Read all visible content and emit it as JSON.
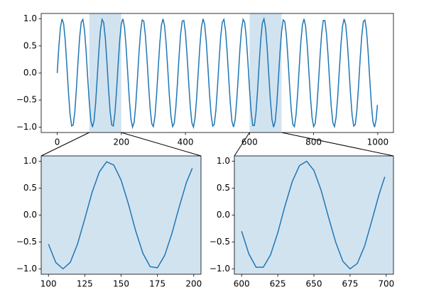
{
  "chart_data": [
    {
      "type": "line",
      "color": "#1f77b4",
      "span_color": "#d2e3f0",
      "xlim": [
        -50,
        1049
      ],
      "ylim": [
        -1.1,
        1.1
      ],
      "xticks": [
        0,
        200,
        400,
        600,
        800,
        1000
      ],
      "yticks": [
        {
          "value": -1,
          "label": "−1.0"
        },
        {
          "value": -0.5,
          "label": "−0.5"
        },
        {
          "value": 0,
          "label": "0.0"
        },
        0.5,
        {
          "value": 1,
          "label": "1.0"
        }
      ],
      "highlight_spans": [
        [
          100,
          200
        ],
        [
          600,
          700
        ]
      ],
      "x": [
        0,
        5,
        10,
        15,
        20,
        25,
        30,
        35,
        40,
        45,
        50,
        55,
        60,
        65,
        70,
        75,
        80,
        85,
        90,
        95,
        100,
        105,
        110,
        115,
        120,
        125,
        130,
        135,
        140,
        145,
        150,
        155,
        160,
        165,
        170,
        175,
        180,
        185,
        190,
        195,
        200,
        205,
        210,
        215,
        220,
        225,
        230,
        235,
        240,
        245,
        250,
        255,
        260,
        265,
        270,
        275,
        280,
        285,
        290,
        295,
        300,
        305,
        310,
        315,
        320,
        325,
        330,
        335,
        340,
        345,
        350,
        355,
        360,
        365,
        370,
        375,
        380,
        385,
        390,
        395,
        400,
        405,
        410,
        415,
        420,
        425,
        430,
        435,
        440,
        445,
        450,
        455,
        460,
        465,
        470,
        475,
        480,
        485,
        490,
        495,
        500,
        505,
        510,
        515,
        520,
        525,
        530,
        535,
        540,
        545,
        550,
        555,
        560,
        565,
        570,
        575,
        580,
        585,
        590,
        595,
        600,
        605,
        610,
        615,
        620,
        625,
        630,
        635,
        640,
        645,
        650,
        655,
        660,
        665,
        670,
        675,
        680,
        685,
        690,
        695,
        700,
        705,
        710,
        715,
        720,
        725,
        730,
        735,
        740,
        745,
        750,
        755,
        760,
        765,
        770,
        775,
        780,
        785,
        790,
        795,
        800,
        805,
        810,
        815,
        820,
        825,
        830,
        835,
        840,
        845,
        850,
        855,
        860,
        865,
        870,
        875,
        880,
        885,
        890,
        895,
        900,
        905,
        910,
        915,
        920,
        925,
        930,
        935,
        940,
        945,
        950,
        955,
        960,
        965,
        970,
        975,
        980,
        985,
        990,
        995,
        999
      ],
      "values": [
        0,
        0.48,
        0.84,
        1.0,
        0.91,
        0.6,
        0.14,
        -0.35,
        -0.76,
        -0.98,
        -0.96,
        -0.71,
        -0.28,
        0.22,
        0.66,
        0.94,
        0.99,
        0.8,
        0.41,
        -0.08,
        -0.54,
        -0.88,
        -1.0,
        -0.88,
        -0.54,
        -0.07,
        0.42,
        0.8,
        0.99,
        0.93,
        0.65,
        0.21,
        -0.29,
        -0.71,
        -0.96,
        -0.98,
        -0.75,
        -0.34,
        0.15,
        0.61,
        0.91,
        1.0,
        0.84,
        0.47,
        -0.01,
        -0.49,
        -0.85,
        -1.0,
        -0.91,
        -0.59,
        -0.13,
        0.36,
        0.76,
        0.98,
        0.96,
        0.7,
        0.27,
        -0.22,
        -0.66,
        -0.94,
        -0.99,
        -0.79,
        -0.4,
        0.08,
        0.55,
        0.88,
        1.0,
        0.87,
        0.53,
        0.06,
        -0.43,
        -0.81,
        -0.99,
        -0.93,
        -0.64,
        -0.2,
        0.3,
        0.72,
        0.96,
        0.97,
        0.75,
        0.33,
        -0.16,
        -0.61,
        -0.92,
        -1.0,
        -0.83,
        -0.46,
        0.02,
        0.49,
        0.85,
        1.0,
        0.9,
        0.58,
        0.12,
        -0.37,
        -0.77,
        -0.98,
        -0.95,
        -0.69,
        -0.26,
        0.23,
        0.67,
        0.94,
        0.99,
        0.79,
        0.4,
        -0.09,
        -0.56,
        -0.89,
        -1.0,
        -0.87,
        -0.52,
        -0.05,
        0.44,
        0.81,
        0.99,
        0.93,
        0.64,
        0.19,
        -0.3,
        -0.72,
        -0.97,
        -0.97,
        -0.74,
        -0.33,
        0.17,
        0.62,
        0.92,
        1.0,
        0.83,
        0.46,
        -0.03,
        -0.5,
        -0.86,
        -1.0,
        -0.9,
        -0.58,
        -0.11,
        0.38,
        0.77,
        0.98,
        0.95,
        0.69,
        0.25,
        -0.24,
        -0.68,
        -0.95,
        -0.99,
        -0.78,
        -0.39,
        0.1,
        0.57,
        0.89,
        1.0,
        0.86,
        0.51,
        0.04,
        -0.44,
        -0.82,
        -0.99,
        -0.93,
        -0.63,
        -0.18,
        0.31,
        0.73,
        0.97,
        0.97,
        0.73,
        0.32,
        -0.18,
        -0.63,
        -0.92,
        -0.99,
        -0.82,
        -0.45,
        0.04,
        0.51,
        0.86,
        1.0,
        0.89,
        0.57,
        0.11,
        -0.38,
        -0.78,
        -0.98,
        -0.95,
        -0.68,
        -0.25,
        0.25,
        0.68,
        0.95,
        0.98,
        0.78,
        0.38,
        -0.11,
        -0.57,
        -0.9,
        -1.0,
        -0.86,
        -0.59
      ]
    },
    {
      "type": "line",
      "color": "#1f77b4",
      "facecolor": "#d2e3f0",
      "xlim": [
        95,
        205
      ],
      "ylim": [
        -1.1,
        1.1
      ],
      "xticks": [
        100,
        125,
        150,
        175,
        200
      ],
      "yticks": [
        {
          "value": -1,
          "label": "−1.0"
        },
        {
          "value": -0.5,
          "label": "−0.5"
        },
        {
          "value": 0,
          "label": "0.0"
        },
        0.5,
        {
          "value": 1,
          "label": "1.0"
        }
      ],
      "x": [
        100,
        105,
        110,
        115,
        120,
        125,
        130,
        135,
        140,
        145,
        150,
        155,
        160,
        165,
        170,
        175,
        180,
        185,
        190,
        195,
        199
      ],
      "values": [
        -0.54,
        -0.88,
        -1.0,
        -0.88,
        -0.54,
        -0.07,
        0.42,
        0.8,
        0.99,
        0.93,
        0.65,
        0.21,
        -0.29,
        -0.71,
        -0.96,
        -0.98,
        -0.75,
        -0.34,
        0.15,
        0.61,
        0.87
      ]
    },
    {
      "type": "line",
      "color": "#1f77b4",
      "facecolor": "#d2e3f0",
      "xlim": [
        595,
        705
      ],
      "ylim": [
        -1.1,
        1.1
      ],
      "xticks": [
        600,
        625,
        650,
        675,
        700
      ],
      "yticks": [
        {
          "value": -1,
          "label": "−1.0"
        },
        {
          "value": -0.5,
          "label": "−0.5"
        },
        {
          "value": 0,
          "label": "0.0"
        },
        0.5,
        {
          "value": 1,
          "label": "1.0"
        }
      ],
      "x": [
        600,
        605,
        610,
        615,
        620,
        625,
        630,
        635,
        640,
        645,
        650,
        655,
        660,
        665,
        670,
        675,
        680,
        685,
        690,
        695,
        699
      ],
      "values": [
        -0.3,
        -0.72,
        -0.97,
        -0.97,
        -0.74,
        -0.33,
        0.17,
        0.62,
        0.92,
        1.0,
        0.83,
        0.46,
        -0.03,
        -0.5,
        -0.86,
        -1.0,
        -0.9,
        -0.58,
        -0.11,
        0.38,
        0.71
      ]
    }
  ]
}
